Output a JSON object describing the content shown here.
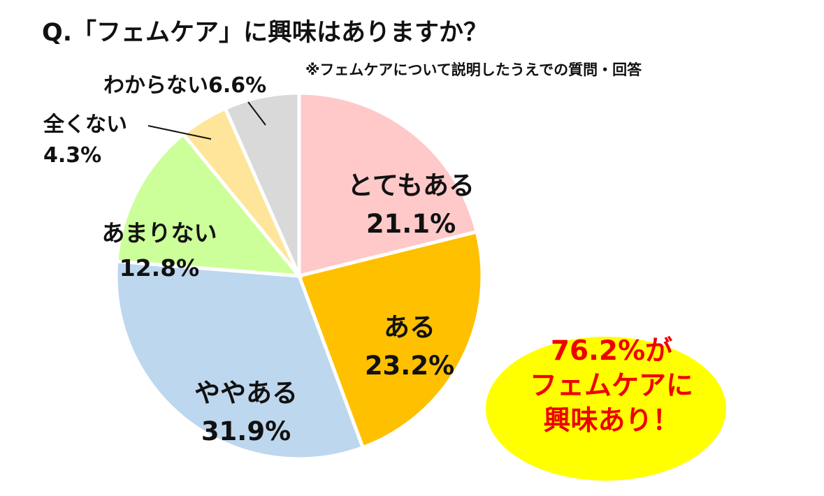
{
  "title": "Q.「フェムケア」に興味はありますか？",
  "note": "※フェムケアについて説明したうえでの質問・回答",
  "colors": {
    "very": "#ffc9c9",
    "some": "#ffc000",
    "slightly": "#bdd7ee",
    "notmuch": "#ccff99",
    "notatall": "#ffe599",
    "unknown": "#d9d9d9",
    "callout_fill": "#ffff00",
    "callout_text": "#ee0000"
  },
  "chart_data": {
    "type": "pie",
    "categories": [
      "とてもある",
      "ある",
      "ややある",
      "あまりない",
      "全くない",
      "わからない"
    ],
    "values": [
      21.1,
      23.2,
      31.9,
      12.8,
      4.3,
      6.6
    ],
    "labels": [
      "21.1%",
      "23.2%",
      "31.9%",
      "12.8%",
      "4.3%",
      "6.6%"
    ],
    "legend": "none"
  },
  "callout": {
    "line1": "76.2%が",
    "line2": "フェムケアに",
    "line3": "興味あり！"
  }
}
